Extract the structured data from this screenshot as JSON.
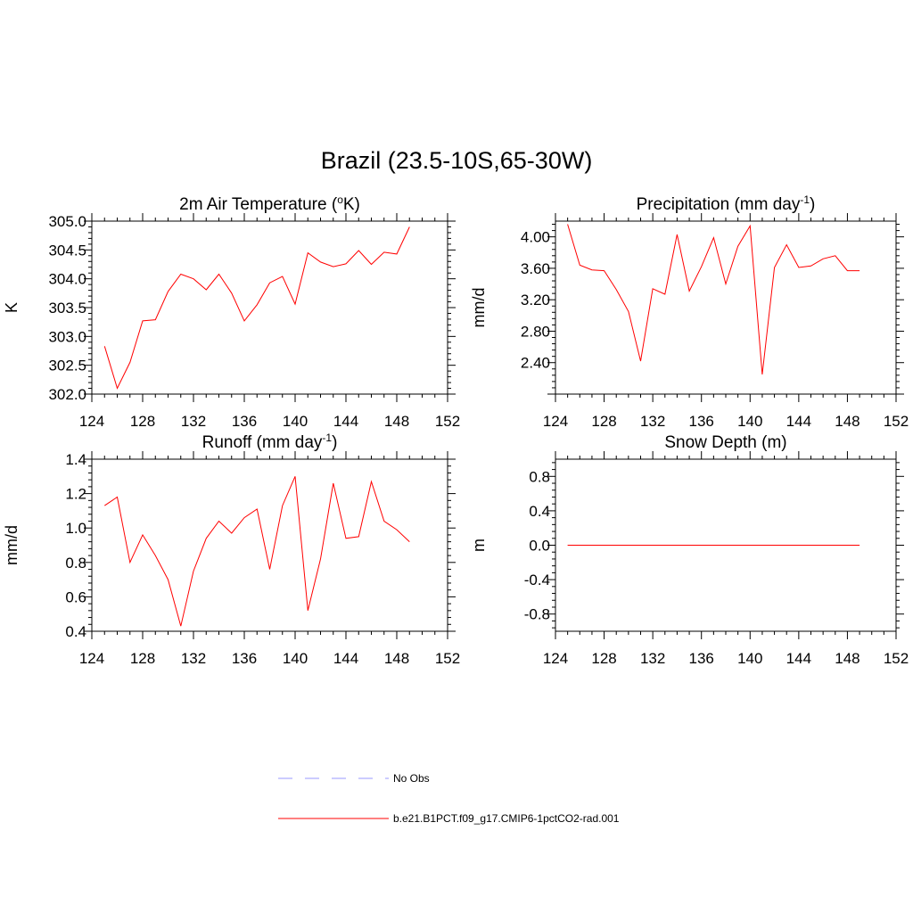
{
  "page_title": "Brazil (23.5-10S,65-30W)",
  "colors": {
    "model": "#ff0000",
    "obs": "#9999ff",
    "axis": "#000000"
  },
  "legend": [
    {
      "label": "No Obs",
      "style": "dashed",
      "color": "#9999ff"
    },
    {
      "label": "b.e21.B1PCT.f09_g17.CMIP6-1pctCO2-rad.001",
      "style": "solid",
      "color": "#ff0000"
    }
  ],
  "chart_data": [
    {
      "type": "line",
      "title": "2m Air Temperature (",
      "title_sup": "o",
      "title_tail": "K)",
      "ylabel": "K",
      "xlim": [
        124,
        152
      ],
      "ylim": [
        302.0,
        305.0
      ],
      "xticks": [
        "124",
        "128",
        "132",
        "136",
        "140",
        "144",
        "148",
        "152"
      ],
      "xtick_values": [
        124,
        128,
        132,
        136,
        140,
        144,
        148,
        152
      ],
      "yticks": [
        "302.0",
        "302.5",
        "303.0",
        "303.5",
        "304.0",
        "304.5",
        "305.0"
      ],
      "ytick_values": [
        302.0,
        302.5,
        303.0,
        303.5,
        304.0,
        304.5,
        305.0
      ],
      "x": [
        125,
        126,
        127,
        128,
        129,
        130,
        131,
        132,
        133,
        134,
        135,
        136,
        137,
        138,
        139,
        140,
        141,
        142,
        143,
        144,
        145,
        146,
        147,
        148,
        149
      ],
      "series": [
        {
          "name": "b.e21.B1PCT.f09_g17.CMIP6-1pctCO2-rad.001",
          "values": [
            302.83,
            302.1,
            302.55,
            303.27,
            303.29,
            303.78,
            304.08,
            304.0,
            303.81,
            304.08,
            303.75,
            303.27,
            303.55,
            303.93,
            304.04,
            303.56,
            304.45,
            304.29,
            304.21,
            304.26,
            304.49,
            304.25,
            304.46,
            304.43,
            304.9
          ]
        }
      ]
    },
    {
      "type": "line",
      "title": "Precipitation (mm day",
      "title_sup": "-1",
      "title_tail": ")",
      "ylabel": "mm/d",
      "xlim": [
        124,
        152
      ],
      "ylim": [
        2.0,
        4.2
      ],
      "xticks": [
        "124",
        "128",
        "132",
        "136",
        "140",
        "144",
        "148",
        "152"
      ],
      "xtick_values": [
        124,
        128,
        132,
        136,
        140,
        144,
        148,
        152
      ],
      "yticks": [
        "2.40",
        "2.80",
        "3.20",
        "3.60",
        "4.00"
      ],
      "ytick_values": [
        2.4,
        2.8,
        3.2,
        3.6,
        4.0
      ],
      "x": [
        125,
        126,
        127,
        128,
        129,
        130,
        131,
        132,
        133,
        134,
        135,
        136,
        137,
        138,
        139,
        140,
        141,
        142,
        143,
        144,
        145,
        146,
        147,
        148,
        149
      ],
      "series": [
        {
          "name": "b.e21.B1PCT.f09_g17.CMIP6-1pctCO2-rad.001",
          "values": [
            4.16,
            3.64,
            3.58,
            3.57,
            3.33,
            3.05,
            2.42,
            3.34,
            3.27,
            4.03,
            3.31,
            3.62,
            3.99,
            3.4,
            3.88,
            4.14,
            2.25,
            3.61,
            3.9,
            3.61,
            3.63,
            3.72,
            3.76,
            3.57,
            3.57
          ]
        }
      ]
    },
    {
      "type": "line",
      "title": "Runoff (mm day",
      "title_sup": "-1",
      "title_tail": ")",
      "ylabel": "mm/d",
      "xlim": [
        124,
        152
      ],
      "ylim": [
        0.4,
        1.4
      ],
      "xticks": [
        "124",
        "128",
        "132",
        "136",
        "140",
        "144",
        "148",
        "152"
      ],
      "xtick_values": [
        124,
        128,
        132,
        136,
        140,
        144,
        148,
        152
      ],
      "yticks": [
        "0.4",
        "0.6",
        "0.8",
        "1.0",
        "1.2",
        "1.4"
      ],
      "ytick_values": [
        0.4,
        0.6,
        0.8,
        1.0,
        1.2,
        1.4
      ],
      "x": [
        125,
        126,
        127,
        128,
        129,
        130,
        131,
        132,
        133,
        134,
        135,
        136,
        137,
        138,
        139,
        140,
        141,
        142,
        143,
        144,
        145,
        146,
        147,
        148,
        149
      ],
      "series": [
        {
          "name": "b.e21.B1PCT.f09_g17.CMIP6-1pctCO2-rad.001",
          "values": [
            1.13,
            1.18,
            0.8,
            0.96,
            0.84,
            0.7,
            0.43,
            0.75,
            0.94,
            1.04,
            0.97,
            1.06,
            1.11,
            0.76,
            1.13,
            1.3,
            0.52,
            0.82,
            1.26,
            0.94,
            0.95,
            1.27,
            1.04,
            0.99,
            0.92
          ]
        }
      ]
    },
    {
      "type": "line",
      "title": "Snow Depth (m)",
      "title_sup": "",
      "title_tail": "",
      "ylabel": "m",
      "xlim": [
        124,
        152
      ],
      "ylim": [
        -1.0,
        1.0
      ],
      "xticks": [
        "124",
        "128",
        "132",
        "136",
        "140",
        "144",
        "148",
        "152"
      ],
      "xtick_values": [
        124,
        128,
        132,
        136,
        140,
        144,
        148,
        152
      ],
      "yticks": [
        "-0.8",
        "-0.4",
        "0.0",
        "0.4",
        "0.8"
      ],
      "ytick_values": [
        -0.8,
        -0.4,
        0.0,
        0.4,
        0.8
      ],
      "x": [
        125,
        149
      ],
      "series": [
        {
          "name": "b.e21.B1PCT.f09_g17.CMIP6-1pctCO2-rad.001",
          "values": [
            0.0,
            0.0
          ]
        }
      ]
    }
  ]
}
